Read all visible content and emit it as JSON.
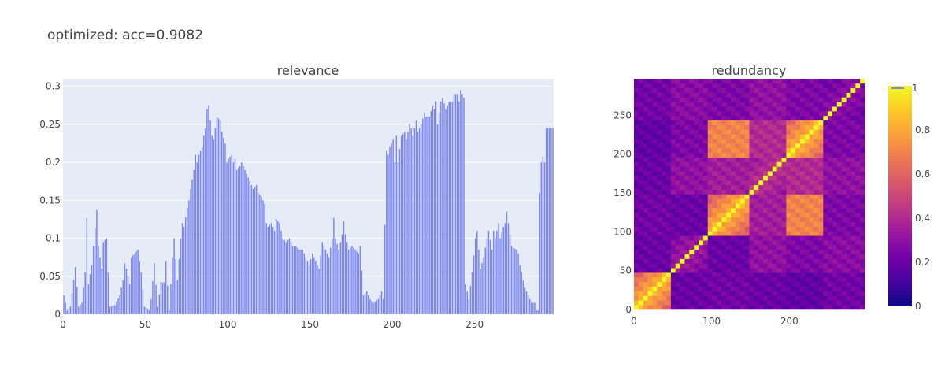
{
  "figure_title": "optimized: acc=0.9082",
  "legend_label": "1",
  "chart_data": [
    {
      "type": "bar",
      "title": "relevance",
      "xlabel": "",
      "ylabel": "",
      "xlim": [
        0,
        298
      ],
      "ylim": [
        0,
        0.31
      ],
      "xticks": [
        0,
        50,
        100,
        150,
        200,
        250
      ],
      "yticks": [
        0,
        0.05,
        0.1,
        0.15,
        0.2,
        0.25,
        0.3
      ],
      "ytick_labels": [
        "0",
        "0.05",
        "0.1",
        "0.15",
        "0.2",
        "0.25",
        "0.3"
      ],
      "bar_color": "#7c86ec",
      "plot_bgcolor": "#e5ecf6",
      "grid": true,
      "keypoints": [
        [
          0,
          0.025
        ],
        [
          2,
          0.005
        ],
        [
          4,
          0.01
        ],
        [
          6,
          0.045
        ],
        [
          7,
          0.062
        ],
        [
          9,
          0.01
        ],
        [
          11,
          0.015
        ],
        [
          13,
          0.055
        ],
        [
          14,
          0.127
        ],
        [
          15,
          0.04
        ],
        [
          17,
          0.065
        ],
        [
          18,
          0.09
        ],
        [
          20,
          0.137
        ],
        [
          21,
          0.09
        ],
        [
          23,
          0.06
        ],
        [
          24,
          0.095
        ],
        [
          26,
          0.1
        ],
        [
          28,
          0.01
        ],
        [
          31,
          0.012
        ],
        [
          34,
          0.025
        ],
        [
          36,
          0.045
        ],
        [
          37,
          0.067
        ],
        [
          38,
          0.06
        ],
        [
          40,
          0.04
        ],
        [
          41,
          0.075
        ],
        [
          43,
          0.08
        ],
        [
          45,
          0.085
        ],
        [
          47,
          0.055
        ],
        [
          49,
          0.01
        ],
        [
          52,
          0.005
        ],
        [
          53,
          0.02
        ],
        [
          55,
          0.067
        ],
        [
          57,
          0.01
        ],
        [
          59,
          0.042
        ],
        [
          61,
          0.042
        ],
        [
          62,
          0.07
        ],
        [
          64,
          0.005
        ],
        [
          66,
          0.075
        ],
        [
          67,
          0.1
        ],
        [
          69,
          0.045
        ],
        [
          71,
          0.1
        ],
        [
          72,
          0.12
        ],
        [
          73,
          0.115
        ],
        [
          75,
          0.14
        ],
        [
          76,
          0.15
        ],
        [
          77,
          0.165
        ],
        [
          79,
          0.19
        ],
        [
          80,
          0.21
        ],
        [
          81,
          0.2
        ],
        [
          82,
          0.21
        ],
        [
          84,
          0.22
        ],
        [
          85,
          0.235
        ],
        [
          86,
          0.245
        ],
        [
          87,
          0.27
        ],
        [
          88,
          0.275
        ],
        [
          89,
          0.255
        ],
        [
          90,
          0.235
        ],
        [
          91,
          0.23
        ],
        [
          92,
          0.245
        ],
        [
          93,
          0.26
        ],
        [
          95,
          0.255
        ],
        [
          96,
          0.24
        ],
        [
          98,
          0.225
        ],
        [
          99,
          0.2
        ],
        [
          100,
          0.205
        ],
        [
          102,
          0.21
        ],
        [
          103,
          0.2
        ],
        [
          104,
          0.205
        ],
        [
          105,
          0.19
        ],
        [
          107,
          0.195
        ],
        [
          108,
          0.2
        ],
        [
          110,
          0.19
        ],
        [
          112,
          0.18
        ],
        [
          114,
          0.17
        ],
        [
          115,
          0.165
        ],
        [
          117,
          0.17
        ],
        [
          118,
          0.16
        ],
        [
          120,
          0.155
        ],
        [
          122,
          0.145
        ],
        [
          123,
          0.12
        ],
        [
          124,
          0.115
        ],
        [
          126,
          0.12
        ],
        [
          128,
          0.11
        ],
        [
          129,
          0.125
        ],
        [
          131,
          0.12
        ],
        [
          133,
          0.1
        ],
        [
          135,
          0.095
        ],
        [
          137,
          0.1
        ],
        [
          139,
          0.09
        ],
        [
          141,
          0.09
        ],
        [
          143,
          0.085
        ],
        [
          145,
          0.085
        ],
        [
          147,
          0.075
        ],
        [
          149,
          0.065
        ],
        [
          151,
          0.08
        ],
        [
          153,
          0.07
        ],
        [
          155,
          0.06
        ],
        [
          157,
          0.095
        ],
        [
          159,
          0.085
        ],
        [
          161,
          0.075
        ],
        [
          163,
          0.1
        ],
        [
          164,
          0.127
        ],
        [
          165,
          0.1
        ],
        [
          167,
          0.085
        ],
        [
          169,
          0.105
        ],
        [
          170,
          0.123
        ],
        [
          171,
          0.105
        ],
        [
          173,
          0.085
        ],
        [
          175,
          0.09
        ],
        [
          177,
          0.085
        ],
        [
          179,
          0.08
        ],
        [
          180,
          0.09
        ],
        [
          182,
          0.025
        ],
        [
          184,
          0.03
        ],
        [
          186,
          0.02
        ],
        [
          188,
          0.015
        ],
        [
          191,
          0.02
        ],
        [
          193,
          0.03
        ],
        [
          194,
          0.02
        ],
        [
          196,
          0.215
        ],
        [
          197,
          0.21
        ],
        [
          198,
          0.22
        ],
        [
          199,
          0.225
        ],
        [
          200,
          0.23
        ],
        [
          201,
          0.2
        ],
        [
          202,
          0.235
        ],
        [
          203,
          0.2
        ],
        [
          205,
          0.235
        ],
        [
          207,
          0.24
        ],
        [
          208,
          0.23
        ],
        [
          210,
          0.25
        ],
        [
          211,
          0.245
        ],
        [
          212,
          0.235
        ],
        [
          214,
          0.255
        ],
        [
          215,
          0.24
        ],
        [
          217,
          0.25
        ],
        [
          219,
          0.265
        ],
        [
          220,
          0.26
        ],
        [
          222,
          0.26
        ],
        [
          224,
          0.275
        ],
        [
          225,
          0.27
        ],
        [
          226,
          0.28
        ],
        [
          227,
          0.25
        ],
        [
          229,
          0.28
        ],
        [
          230,
          0.285
        ],
        [
          232,
          0.27
        ],
        [
          234,
          0.28
        ],
        [
          236,
          0.28
        ],
        [
          237,
          0.29
        ],
        [
          239,
          0.29
        ],
        [
          240,
          0.28
        ],
        [
          241,
          0.295
        ],
        [
          242,
          0.29
        ],
        [
          243,
          0.285
        ],
        [
          244,
          0.04
        ],
        [
          246,
          0.02
        ],
        [
          248,
          0.055
        ],
        [
          250,
          0.1
        ],
        [
          251,
          0.11
        ],
        [
          253,
          0.06
        ],
        [
          255,
          0.075
        ],
        [
          257,
          0.1
        ],
        [
          258,
          0.11
        ],
        [
          260,
          0.085
        ],
        [
          261,
          0.11
        ],
        [
          262,
          0.1
        ],
        [
          264,
          0.12
        ],
        [
          265,
          0.1
        ],
        [
          267,
          0.115
        ],
        [
          268,
          0.12
        ],
        [
          269,
          0.135
        ],
        [
          270,
          0.12
        ],
        [
          272,
          0.09
        ],
        [
          273,
          0.087
        ],
        [
          275,
          0.085
        ],
        [
          276,
          0.08
        ],
        [
          277,
          0.065
        ],
        [
          279,
          0.045
        ],
        [
          280,
          0.035
        ],
        [
          282,
          0.025
        ],
        [
          284,
          0.015
        ],
        [
          286,
          0.015
        ],
        [
          287,
          0.005
        ],
        [
          288,
          0.005
        ],
        [
          289,
          0.16
        ],
        [
          290,
          0.2
        ],
        [
          291,
          0.207
        ],
        [
          292,
          0.2
        ],
        [
          293,
          0.245
        ]
      ]
    },
    {
      "type": "heatmap",
      "title": "redundancy",
      "xlim": [
        0,
        297
      ],
      "ylim": [
        0,
        297
      ],
      "xticks": [
        0,
        100,
        200
      ],
      "yticks": [
        0,
        50,
        100,
        150,
        200,
        250
      ],
      "colorscale": [
        "#0d0887",
        "#46039f",
        "#7201a8",
        "#9c179e",
        "#bd3786",
        "#d8576b",
        "#ed7953",
        "#fb9f3a",
        "#fdca26",
        "#f0f921"
      ],
      "colorbar_ticks": [
        0,
        0.2,
        0.4,
        0.6,
        0.8
      ],
      "colorbar_min": 0,
      "colorbar_max": 1,
      "block_edges": [
        0,
        48,
        98,
        147,
        196,
        245,
        297
      ],
      "block_values": [
        [
          0.85,
          0.2,
          0.22,
          0.2,
          0.18,
          0.22
        ],
        [
          0.2,
          0.35,
          0.2,
          0.3,
          0.25,
          0.28
        ],
        [
          0.22,
          0.2,
          0.85,
          0.35,
          0.7,
          0.25
        ],
        [
          0.2,
          0.3,
          0.35,
          0.45,
          0.4,
          0.3
        ],
        [
          0.18,
          0.25,
          0.7,
          0.4,
          0.85,
          0.25
        ],
        [
          0.22,
          0.28,
          0.25,
          0.3,
          0.25,
          0.3
        ]
      ],
      "diagonal_value": 1.0
    }
  ]
}
